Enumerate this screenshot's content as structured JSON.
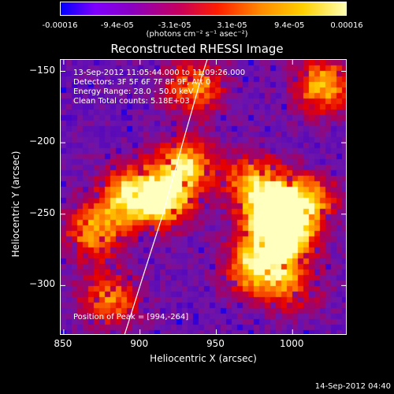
{
  "colorbar": {
    "ticks": [
      "-0.00016",
      "-9.4e-05",
      "-3.1e-05",
      "3.1e-05",
      "9.4e-05",
      "0.00016"
    ],
    "label": "(photons cm⁻² s⁻¹ asec⁻²)"
  },
  "info_lines": {
    "time": "13-Sep-2012 11:05:44.000 to 11:09:26.000",
    "detectors": "Detectors: 3F 5F 6F 7F 8F 9F, Att 0",
    "energy": "Energy Range: 28.0 - 50.0 keV",
    "clean": "Clean     Total counts: 5.18E+03",
    "peak": "Position of Peak = [994,-264]"
  },
  "datestamp": "14-Sep-2012 04:40",
  "chart_data": {
    "type": "heatmap",
    "title": "Reconstructed RHESSI Image",
    "xlabel": "Heliocentric X (arcsec)",
    "ylabel": "Heliocentric Y (arcsec)",
    "xlim": [
      848,
      1035
    ],
    "ylim": [
      -334,
      -142
    ],
    "xticks": [
      850,
      900,
      950,
      1000
    ],
    "yticks": [
      -150,
      -200,
      -250,
      -300
    ],
    "colorbar_range": [
      -0.00016,
      0.00016
    ],
    "limb_curve": [
      [
        890,
        -334
      ],
      [
        903,
        -290
      ],
      [
        915,
        -250
      ],
      [
        928,
        -200
      ],
      [
        940,
        -155
      ],
      [
        944,
        -142
      ]
    ],
    "peak_position": [
      994,
      -264
    ],
    "bright_sources": [
      {
        "x": 915,
        "y": -240,
        "strength": 1.0
      },
      {
        "x": 892,
        "y": -236,
        "strength": 0.85
      },
      {
        "x": 870,
        "y": -262,
        "strength": 0.8
      },
      {
        "x": 930,
        "y": -215,
        "strength": 0.85
      },
      {
        "x": 975,
        "y": -228,
        "strength": 0.8
      },
      {
        "x": 988,
        "y": -252,
        "strength": 0.9
      },
      {
        "x": 994,
        "y": -264,
        "strength": 1.0
      },
      {
        "x": 975,
        "y": -288,
        "strength": 0.9
      },
      {
        "x": 1010,
        "y": -240,
        "strength": 0.75
      },
      {
        "x": 1020,
        "y": -160,
        "strength": 0.85
      },
      {
        "x": 936,
        "y": -160,
        "strength": 0.75
      },
      {
        "x": 880,
        "y": -310,
        "strength": 0.7
      },
      {
        "x": 1000,
        "y": -300,
        "strength": 0.55
      }
    ]
  }
}
